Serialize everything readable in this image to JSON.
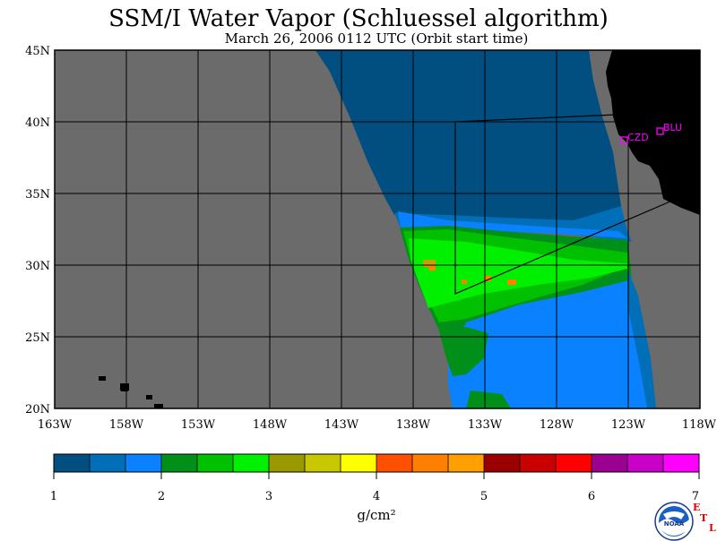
{
  "title": "SSM/I Water Vapor (Schluessel algorithm)",
  "subtitle": "March 26, 2006   0112 UTC  (Orbit start time)",
  "map": {
    "lat_labels": [
      "45N",
      "40N",
      "35N",
      "30N",
      "25N",
      "20N"
    ],
    "lon_labels": [
      "163W",
      "158W",
      "153W",
      "148W",
      "143W",
      "138W",
      "133W",
      "128W",
      "123W",
      "118W"
    ],
    "stations": [
      {
        "id": "CZD",
        "lat": 38.6,
        "lon": -123.3
      },
      {
        "id": "BLU",
        "lat": 39.3,
        "lon": -120.8
      }
    ],
    "colors": {
      "no_data": "#6b6b6b",
      "land": "#000000",
      "station_marker": "#ff00ff",
      "grid": "#000000"
    }
  },
  "colorbar": {
    "colors": [
      "#004f80",
      "#006fb8",
      "#0a82ff",
      "#00901a",
      "#00c000",
      "#00f000",
      "#999900",
      "#c8c800",
      "#ffff00",
      "#ff5000",
      "#ff8000",
      "#ffa000",
      "#9a0000",
      "#c80000",
      "#ff0000",
      "#9c0090",
      "#c800c8",
      "#ff00ff"
    ],
    "tick_labels": [
      "1",
      "2",
      "3",
      "4",
      "5",
      "6",
      "7"
    ],
    "unit_label": "g/cm²"
  },
  "logos": {
    "noaa_text": "NOAA",
    "etl_letters": [
      "E",
      "T",
      "L"
    ]
  }
}
